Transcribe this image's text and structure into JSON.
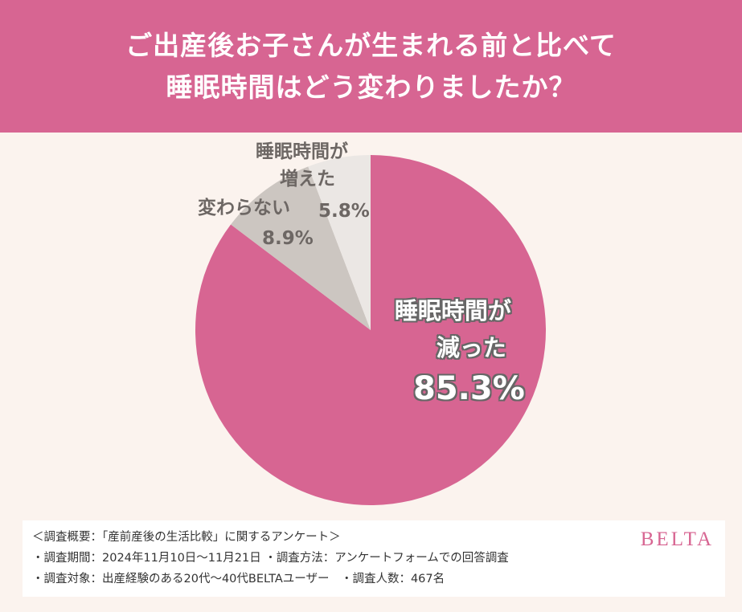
{
  "title": {
    "line1": "ご出産後お子さんが生まれる前と比べて",
    "line2": "睡眠時間はどう変わりましたか？"
  },
  "chart_data": {
    "type": "pie",
    "slices": [
      {
        "label_line1": "睡眠時間が",
        "label_line2": "減った",
        "value": 85.3,
        "value_text": "85.3%",
        "color": "#d76592"
      },
      {
        "label_line1": "変わらない",
        "label_line2": "",
        "value": 8.9,
        "value_text": "8.9%",
        "color": "#ccc6c1"
      },
      {
        "label_line1": "睡眠時間が",
        "label_line2": "増えた",
        "value": 5.8,
        "value_text": "5.8%",
        "color": "#ebe7e4"
      }
    ]
  },
  "footer": {
    "line1": "＜調査概要：「産前産後の生活比較」に関するアンケート＞",
    "line2": "・調査期間：2024年11月10日〜11月21日 ・調査方法：アンケートフォームでの回答調査",
    "line3": "・調査対象：出産経験のある20代〜40代BELTAユーザー　・調査人数：467名",
    "brand": "BELTA"
  }
}
